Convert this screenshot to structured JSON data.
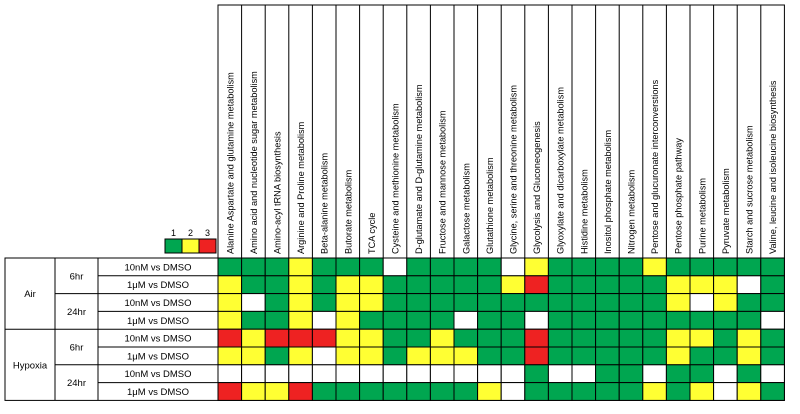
{
  "chart_data": {
    "type": "heatmap",
    "legend": {
      "levels": [
        "1",
        "2",
        "3"
      ],
      "colors": [
        "#00a650",
        "#ffff33",
        "#ee2222"
      ]
    },
    "empty_color": "#ffffff",
    "columns": [
      "Alanine Aspartate and glutamine metabolism",
      "Amino acid and nucleotide sugar metabolism",
      "Amino-acyl tRNA biosynthesis",
      "Arginine and Proline metabolism",
      "Beta-alanine metabolism",
      "Butorate metabolism",
      "TCA cycle",
      "Cysteine and methionine metabolism",
      "D-glutamate and D-glutamine metabolism",
      "Fructose and mannose metabolism",
      "Galactose metabolism",
      "Glutathione metabolism",
      "Glycine, serine and threonine metabolism",
      "Glycolysis and Gluconeogenesis",
      "Glyoxylate and dicarboxylate metabolism",
      "Histidine metabolism",
      "Inositol phosphate metabolism",
      "Nitrogen metabolism",
      "Pentose and glucuronate interconverstions",
      "Pentose phosphate pathway",
      "Purine metabolism",
      "Pyruvate metabolism",
      "Starch and sucrose metabolism",
      "Valine, leucine and isoleucine biosynthesis"
    ],
    "row_groups": [
      {
        "condition": "Air",
        "times": [
          {
            "time": "6hr",
            "rows": [
              {
                "label": "10nM vs DMSO",
                "values": [
                  1,
                  1,
                  1,
                  2,
                  1,
                  1,
                  1,
                  0,
                  1,
                  1,
                  1,
                  1,
                  0,
                  2,
                  1,
                  1,
                  1,
                  1,
                  2,
                  1,
                  1,
                  1,
                  1,
                  1
                ]
              },
              {
                "label": "1μM vs DMSO",
                "values": [
                  2,
                  1,
                  1,
                  2,
                  1,
                  2,
                  2,
                  1,
                  1,
                  1,
                  1,
                  1,
                  2,
                  3,
                  1,
                  1,
                  1,
                  1,
                  1,
                  2,
                  2,
                  2,
                  0,
                  1
                ]
              }
            ]
          },
          {
            "time": "24hr",
            "rows": [
              {
                "label": "10nM vs DMSO",
                "values": [
                  2,
                  0,
                  1,
                  2,
                  1,
                  2,
                  2,
                  1,
                  1,
                  1,
                  1,
                  1,
                  1,
                  1,
                  1,
                  1,
                  1,
                  1,
                  1,
                  2,
                  0,
                  2,
                  1,
                  1
                ]
              },
              {
                "label": "1μM vs DMSO",
                "values": [
                  2,
                  1,
                  1,
                  2,
                  0,
                  2,
                  1,
                  1,
                  1,
                  1,
                  0,
                  1,
                  1,
                  0,
                  1,
                  1,
                  1,
                  1,
                  1,
                  1,
                  1,
                  1,
                  1,
                  0
                ]
              }
            ]
          }
        ]
      },
      {
        "condition": "Hypoxia",
        "times": [
          {
            "time": "6hr",
            "rows": [
              {
                "label": "10nM vs DMSO",
                "values": [
                  3,
                  2,
                  3,
                  3,
                  3,
                  2,
                  2,
                  1,
                  1,
                  2,
                  1,
                  1,
                  1,
                  3,
                  1,
                  1,
                  1,
                  1,
                  1,
                  2,
                  2,
                  1,
                  2,
                  1
                ]
              },
              {
                "label": "1μM vs DMSO",
                "values": [
                  2,
                  2,
                  1,
                  2,
                  0,
                  2,
                  2,
                  1,
                  2,
                  2,
                  2,
                  1,
                  1,
                  3,
                  1,
                  1,
                  1,
                  1,
                  1,
                  2,
                  1,
                  1,
                  2,
                  1
                ]
              }
            ]
          },
          {
            "time": "24hr",
            "rows": [
              {
                "label": "10nM vs DMSO",
                "values": [
                  0,
                  0,
                  0,
                  0,
                  0,
                  0,
                  0,
                  0,
                  0,
                  0,
                  0,
                  0,
                  0,
                  1,
                  0,
                  0,
                  1,
                  1,
                  0,
                  1,
                  1,
                  0,
                  1,
                  0
                ]
              },
              {
                "label": "1μM vs DMSO",
                "values": [
                  3,
                  2,
                  2,
                  3,
                  1,
                  1,
                  1,
                  1,
                  1,
                  1,
                  1,
                  2,
                  0,
                  1,
                  1,
                  1,
                  1,
                  1,
                  2,
                  1,
                  2,
                  0,
                  2,
                  1
                ]
              }
            ]
          }
        ]
      }
    ]
  }
}
